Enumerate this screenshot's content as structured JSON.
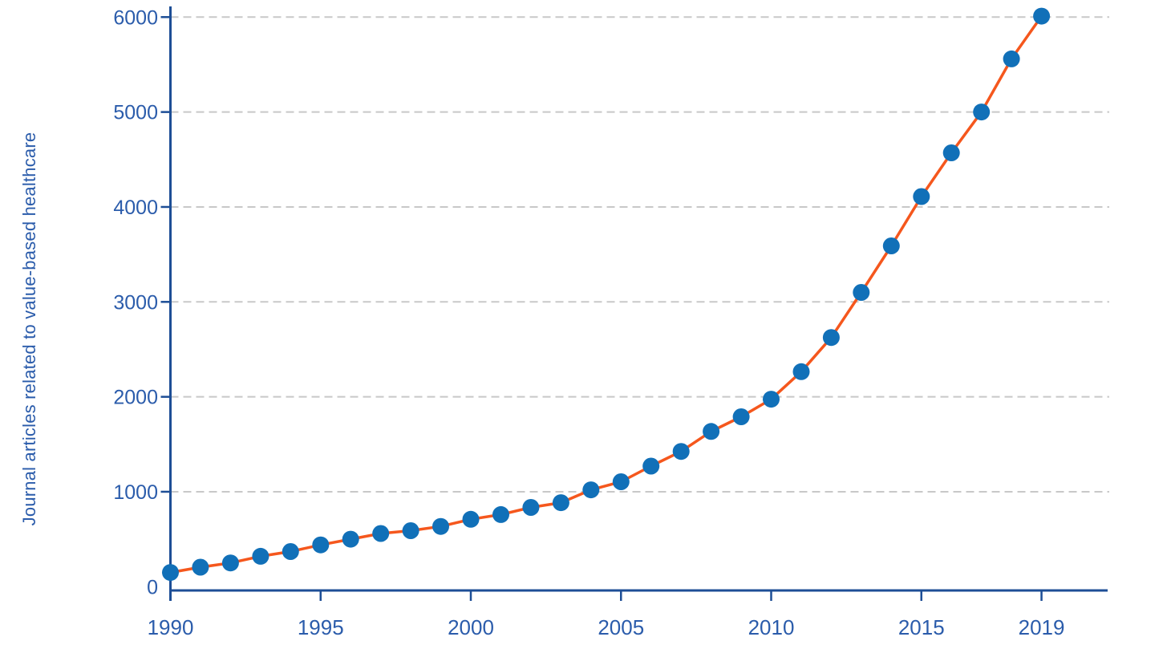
{
  "chart_data": {
    "type": "line",
    "title": "",
    "xlabel": "",
    "ylabel": "Journal articles related to value-based healthcare",
    "x": [
      1990,
      1991,
      1992,
      1993,
      1994,
      1995,
      1996,
      1997,
      1998,
      1999,
      2000,
      2001,
      2002,
      2003,
      2004,
      2005,
      2006,
      2007,
      2008,
      2009,
      2010,
      2011,
      2012,
      2013,
      2014,
      2015,
      2016,
      2017,
      2018,
      2019
    ],
    "series": [
      {
        "name": "Journal articles related to value-based healthcare",
        "values": [
          150,
          205,
          250,
          320,
          370,
          440,
          500,
          560,
          590,
          635,
          710,
          760,
          835,
          885,
          1020,
          1105,
          1270,
          1425,
          1635,
          1790,
          1975,
          2265,
          2625,
          3100,
          3590,
          4110,
          4570,
          5000,
          5560,
          6010
        ]
      }
    ],
    "ylim": [
      0,
      6300
    ],
    "xlim": [
      1990,
      2021
    ],
    "yticks": [
      0,
      1000,
      2000,
      3000,
      4000,
      5000,
      6000
    ],
    "xticks": [
      1990,
      1995,
      2000,
      2005,
      2010,
      2015,
      2019
    ],
    "grid": "horizontal-dashed",
    "legend": "none",
    "marker": "circle",
    "colors": {
      "line": "#f5571d",
      "marker": "#1170b8",
      "axis": "#1d4e96",
      "labels": "#2b5cab",
      "grid": "#c8c8c8",
      "background": "#ffffff"
    }
  }
}
